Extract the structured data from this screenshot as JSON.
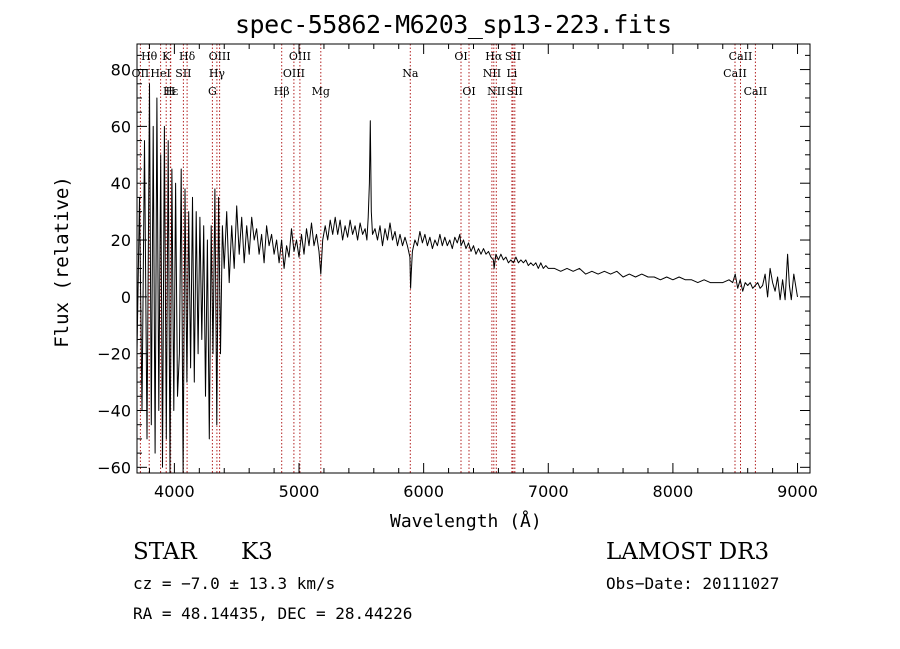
{
  "chart_data": {
    "type": "line",
    "title": "spec-55862-M6203_sp13-223.fits",
    "xlabel": "Wavelength (Å)",
    "ylabel": "Flux (relative)",
    "xlim": [
      3700,
      9100
    ],
    "ylim": [
      -62,
      89
    ],
    "x_ticks": [
      4000,
      5000,
      6000,
      7000,
      8000,
      9000
    ],
    "x_tick_labels": [
      "4000",
      "5000",
      "6000",
      "7000",
      "8000",
      "9000"
    ],
    "y_ticks": [
      -60,
      -40,
      -20,
      0,
      20,
      40,
      60,
      80
    ],
    "y_tick_labels": [
      "−60",
      "−40",
      "−20",
      "0",
      "20",
      "40",
      "60",
      "80"
    ],
    "series": [
      {
        "name": "flux",
        "points": [
          [
            3700,
            -20
          ],
          [
            3720,
            35
          ],
          [
            3740,
            -40
          ],
          [
            3760,
            55
          ],
          [
            3780,
            -50
          ],
          [
            3800,
            75
          ],
          [
            3815,
            -45
          ],
          [
            3830,
            60
          ],
          [
            3845,
            -55
          ],
          [
            3860,
            70
          ],
          [
            3875,
            -40
          ],
          [
            3890,
            50
          ],
          [
            3905,
            -60
          ],
          [
            3920,
            60
          ],
          [
            3935,
            -50
          ],
          [
            3950,
            55
          ],
          [
            3965,
            -62
          ],
          [
            3980,
            45
          ],
          [
            3995,
            -40
          ],
          [
            4010,
            40
          ],
          [
            4025,
            -35
          ],
          [
            4040,
            -20
          ],
          [
            4055,
            45
          ],
          [
            4070,
            -62
          ],
          [
            4085,
            38
          ],
          [
            4100,
            -30
          ],
          [
            4115,
            30
          ],
          [
            4130,
            -25
          ],
          [
            4145,
            35
          ],
          [
            4160,
            -30
          ],
          [
            4175,
            30
          ],
          [
            4190,
            -20
          ],
          [
            4205,
            28
          ],
          [
            4220,
            -15
          ],
          [
            4235,
            25
          ],
          [
            4250,
            -35
          ],
          [
            4265,
            20
          ],
          [
            4280,
            -50
          ],
          [
            4295,
            25
          ],
          [
            4310,
            -20
          ],
          [
            4325,
            38
          ],
          [
            4340,
            -45
          ],
          [
            4355,
            35
          ],
          [
            4370,
            -20
          ],
          [
            4385,
            25
          ],
          [
            4400,
            10
          ],
          [
            4420,
            30
          ],
          [
            4440,
            5
          ],
          [
            4460,
            25
          ],
          [
            4480,
            10
          ],
          [
            4500,
            32
          ],
          [
            4520,
            15
          ],
          [
            4540,
            28
          ],
          [
            4560,
            12
          ],
          [
            4580,
            25
          ],
          [
            4600,
            15
          ],
          [
            4620,
            28
          ],
          [
            4640,
            20
          ],
          [
            4660,
            24
          ],
          [
            4680,
            15
          ],
          [
            4700,
            22
          ],
          [
            4720,
            12
          ],
          [
            4740,
            25
          ],
          [
            4760,
            18
          ],
          [
            4780,
            22
          ],
          [
            4800,
            15
          ],
          [
            4820,
            20
          ],
          [
            4840,
            12
          ],
          [
            4860,
            20
          ],
          [
            4880,
            10
          ],
          [
            4900,
            18
          ],
          [
            4920,
            14
          ],
          [
            4940,
            24
          ],
          [
            4960,
            16
          ],
          [
            4980,
            20
          ],
          [
            5000,
            14
          ],
          [
            5020,
            22
          ],
          [
            5040,
            15
          ],
          [
            5060,
            24
          ],
          [
            5080,
            18
          ],
          [
            5100,
            26
          ],
          [
            5120,
            18
          ],
          [
            5140,
            22
          ],
          [
            5160,
            16
          ],
          [
            5175,
            8
          ],
          [
            5190,
            20
          ],
          [
            5210,
            25
          ],
          [
            5230,
            20
          ],
          [
            5250,
            27
          ],
          [
            5270,
            22
          ],
          [
            5290,
            28
          ],
          [
            5310,
            22
          ],
          [
            5330,
            27
          ],
          [
            5350,
            20
          ],
          [
            5370,
            25
          ],
          [
            5390,
            21
          ],
          [
            5410,
            27
          ],
          [
            5430,
            22
          ],
          [
            5450,
            25
          ],
          [
            5470,
            20
          ],
          [
            5490,
            26
          ],
          [
            5510,
            22
          ],
          [
            5530,
            24
          ],
          [
            5545,
            20
          ],
          [
            5555,
            28
          ],
          [
            5565,
            40
          ],
          [
            5572,
            62
          ],
          [
            5580,
            30
          ],
          [
            5590,
            22
          ],
          [
            5610,
            24
          ],
          [
            5630,
            20
          ],
          [
            5650,
            25
          ],
          [
            5670,
            18
          ],
          [
            5690,
            24
          ],
          [
            5710,
            20
          ],
          [
            5730,
            26
          ],
          [
            5750,
            20
          ],
          [
            5770,
            23
          ],
          [
            5790,
            18
          ],
          [
            5810,
            22
          ],
          [
            5830,
            18
          ],
          [
            5850,
            21
          ],
          [
            5870,
            18
          ],
          [
            5890,
            14
          ],
          [
            5895,
            3
          ],
          [
            5900,
            8
          ],
          [
            5910,
            16
          ],
          [
            5930,
            20
          ],
          [
            5950,
            18
          ],
          [
            5970,
            23
          ],
          [
            5990,
            19
          ],
          [
            6010,
            22
          ],
          [
            6030,
            18
          ],
          [
            6050,
            21
          ],
          [
            6070,
            17
          ],
          [
            6090,
            20
          ],
          [
            6110,
            18
          ],
          [
            6130,
            22
          ],
          [
            6150,
            18
          ],
          [
            6170,
            21
          ],
          [
            6190,
            18
          ],
          [
            6210,
            20
          ],
          [
            6230,
            17
          ],
          [
            6250,
            21
          ],
          [
            6270,
            19
          ],
          [
            6290,
            22
          ],
          [
            6300,
            18
          ],
          [
            6320,
            20
          ],
          [
            6340,
            17
          ],
          [
            6360,
            19
          ],
          [
            6380,
            16
          ],
          [
            6400,
            18
          ],
          [
            6420,
            15
          ],
          [
            6440,
            17
          ],
          [
            6460,
            15
          ],
          [
            6480,
            17
          ],
          [
            6500,
            15
          ],
          [
            6520,
            16
          ],
          [
            6540,
            14
          ],
          [
            6560,
            13
          ],
          [
            6565,
            10
          ],
          [
            6580,
            15
          ],
          [
            6600,
            13
          ],
          [
            6620,
            15
          ],
          [
            6640,
            13
          ],
          [
            6660,
            14
          ],
          [
            6680,
            12
          ],
          [
            6700,
            13
          ],
          [
            6720,
            12
          ],
          [
            6740,
            14
          ],
          [
            6760,
            12
          ],
          [
            6780,
            13
          ],
          [
            6800,
            12
          ],
          [
            6820,
            13
          ],
          [
            6840,
            11
          ],
          [
            6860,
            12
          ],
          [
            6880,
            11
          ],
          [
            6900,
            12
          ],
          [
            6920,
            10
          ],
          [
            6940,
            12
          ],
          [
            6960,
            10
          ],
          [
            6980,
            11
          ],
          [
            7000,
            10
          ],
          [
            7050,
            10
          ],
          [
            7100,
            9
          ],
          [
            7150,
            10
          ],
          [
            7200,
            9
          ],
          [
            7250,
            10
          ],
          [
            7300,
            8
          ],
          [
            7350,
            9
          ],
          [
            7400,
            8
          ],
          [
            7450,
            9
          ],
          [
            7500,
            8
          ],
          [
            7550,
            9
          ],
          [
            7600,
            7
          ],
          [
            7650,
            8
          ],
          [
            7700,
            7
          ],
          [
            7750,
            8
          ],
          [
            7800,
            7
          ],
          [
            7850,
            7
          ],
          [
            7900,
            6
          ],
          [
            7950,
            7
          ],
          [
            8000,
            6
          ],
          [
            8050,
            7
          ],
          [
            8100,
            6
          ],
          [
            8150,
            6
          ],
          [
            8200,
            5
          ],
          [
            8250,
            6
          ],
          [
            8300,
            5
          ],
          [
            8350,
            5
          ],
          [
            8400,
            5
          ],
          [
            8450,
            6
          ],
          [
            8480,
            5
          ],
          [
            8500,
            8
          ],
          [
            8520,
            3
          ],
          [
            8540,
            6
          ],
          [
            8560,
            2
          ],
          [
            8580,
            5
          ],
          [
            8600,
            4
          ],
          [
            8620,
            5
          ],
          [
            8640,
            3
          ],
          [
            8660,
            4
          ],
          [
            8680,
            5
          ],
          [
            8700,
            3
          ],
          [
            8720,
            4
          ],
          [
            8740,
            8
          ],
          [
            8760,
            0
          ],
          [
            8780,
            10
          ],
          [
            8800,
            5
          ],
          [
            8820,
            2
          ],
          [
            8840,
            7
          ],
          [
            8860,
            -1
          ],
          [
            8880,
            6
          ],
          [
            8900,
            -1
          ],
          [
            8920,
            15
          ],
          [
            8935,
            4
          ],
          [
            8950,
            -1
          ],
          [
            8970,
            8
          ],
          [
            9000,
            0
          ]
        ]
      }
    ],
    "line_markers": [
      {
        "label": "Hθ",
        "wave": 3798,
        "row": 0
      },
      {
        "label": "K",
        "wave": 3934,
        "row": 0
      },
      {
        "label": "Hδ",
        "wave": 4102,
        "row": 0
      },
      {
        "label": "OIII",
        "wave": 4363,
        "row": 0
      },
      {
        "label": "OIII",
        "wave": 5007,
        "row": 0
      },
      {
        "label": "OI",
        "wave": 6300,
        "row": 0
      },
      {
        "label": "Hα",
        "wave": 6563,
        "row": 0
      },
      {
        "label": "SII",
        "wave": 6717,
        "row": 0
      },
      {
        "label": "CaII",
        "wave": 8542,
        "row": 0
      },
      {
        "label": "OII",
        "wave": 3727,
        "row": 1
      },
      {
        "label": "HeI",
        "wave": 3889,
        "row": 1
      },
      {
        "label": "SII",
        "wave": 4072,
        "row": 1
      },
      {
        "label": "Hγ",
        "wave": 4341,
        "row": 1
      },
      {
        "label": "OIII",
        "wave": 4959,
        "row": 1
      },
      {
        "label": "Na",
        "wave": 5893,
        "row": 1
      },
      {
        "label": "NII",
        "wave": 6548,
        "row": 1
      },
      {
        "label": "Li",
        "wave": 6708,
        "row": 1
      },
      {
        "label": "CaII",
        "wave": 8498,
        "row": 1
      },
      {
        "label": "Hε",
        "wave": 3970,
        "row": 2
      },
      {
        "label": "H",
        "wave": 3968,
        "row": 2
      },
      {
        "label": "G",
        "wave": 4305,
        "row": 2
      },
      {
        "label": "Hβ",
        "wave": 4861,
        "row": 2
      },
      {
        "label": "Mg",
        "wave": 5175,
        "row": 2
      },
      {
        "label": "OI",
        "wave": 6364,
        "row": 2
      },
      {
        "label": "NII",
        "wave": 6583,
        "row": 2
      },
      {
        "label": "SII",
        "wave": 6731,
        "row": 2
      },
      {
        "label": "CaII",
        "wave": 8662,
        "row": 2
      }
    ]
  },
  "info": {
    "object_class": "STAR",
    "subclass": "K3",
    "survey": "LAMOST DR3",
    "cz": "cz = −7.0 ± 13.3 km/s",
    "obs_date": "Obs−Date: 20111027",
    "coords": "RA =  48.14435, DEC =  28.44226"
  }
}
